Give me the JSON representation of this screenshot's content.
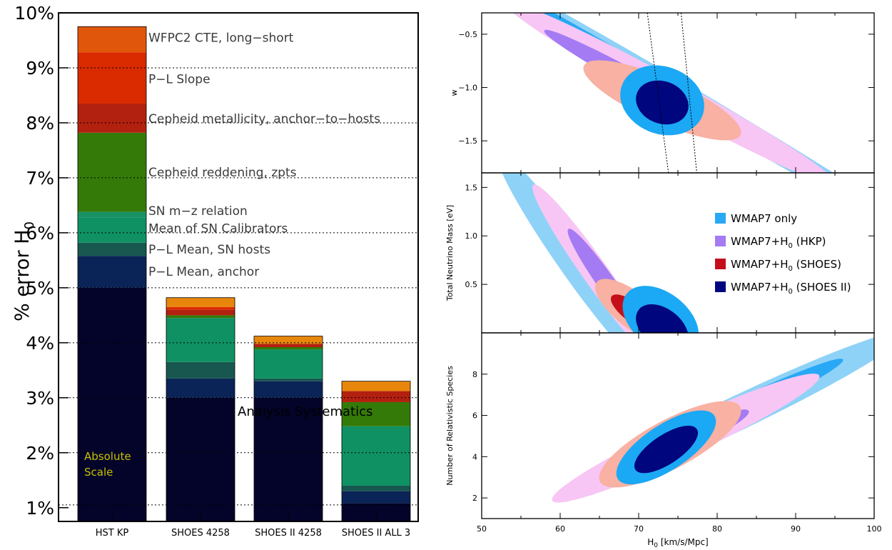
{
  "colors": {
    "absolute_scale": "#04042a",
    "pl_mean_anchor": "#0b2457",
    "pl_mean_hosts": "#17574f",
    "mean_sn_calibrators": "#0f9164",
    "sn_mz": "#1a9165",
    "reddening": "#347a08",
    "metallicity": "#b22010",
    "pl_slope": "#d92a00",
    "cte": "#e0560a",
    "analysis": "#e8860c",
    "wmap7": "#29a8f5",
    "wmap7_light": "#8fd2f7",
    "hkp": "#a57bf3",
    "hkp_light": "#f7c6f4",
    "shoes": "#c40f1a",
    "shoes_light": "#f8b1a2",
    "shoes2": "#00067e",
    "shoes2_light": "#1ba8f5"
  },
  "chart_data": [
    {
      "type": "bar",
      "stacked": true,
      "ylabel": "% error H",
      "ylabel_sub": "0",
      "ylim": [
        0.75,
        10
      ],
      "yticks": [
        {
          "v": 1,
          "label": "1%"
        },
        {
          "v": 2,
          "label": "2%"
        },
        {
          "v": 3,
          "label": "3%"
        },
        {
          "v": 4,
          "label": "4%"
        },
        {
          "v": 5,
          "label": "5%"
        },
        {
          "v": 6,
          "label": "6%"
        },
        {
          "v": 7,
          "label": "7%"
        },
        {
          "v": 8,
          "label": "8%"
        },
        {
          "v": 9,
          "label": "9%"
        },
        {
          "v": 10,
          "label": "10%"
        }
      ],
      "gridlines": [
        1.05,
        2,
        3,
        4,
        5,
        6,
        7,
        8,
        9
      ],
      "categories": [
        "HST KP",
        "SHOES 4258",
        "SHOES II 4258",
        "SHOES II ALL 3"
      ],
      "bars": [
        {
          "segments": [
            {
              "top": 5.0,
              "color": "absolute_scale"
            },
            {
              "top": 5.58,
              "color": "pl_mean_anchor"
            },
            {
              "top": 5.82,
              "color": "pl_mean_hosts"
            },
            {
              "top": 6.28,
              "color": "mean_sn_calibrators"
            },
            {
              "top": 6.38,
              "color": "sn_mz"
            },
            {
              "top": 7.82,
              "color": "reddening"
            },
            {
              "top": 8.35,
              "color": "metallicity"
            },
            {
              "top": 9.28,
              "color": "pl_slope"
            },
            {
              "top": 9.75,
              "color": "cte"
            }
          ]
        },
        {
          "segments": [
            {
              "top": 3.0,
              "color": "absolute_scale"
            },
            {
              "top": 3.35,
              "color": "pl_mean_anchor"
            },
            {
              "top": 3.65,
              "color": "pl_mean_hosts"
            },
            {
              "top": 4.45,
              "color": "mean_sn_calibrators"
            },
            {
              "top": 4.5,
              "color": "reddening"
            },
            {
              "top": 4.6,
              "color": "metallicity"
            },
            {
              "top": 4.65,
              "color": "pl_slope"
            },
            {
              "top": 4.82,
              "color": "analysis"
            }
          ]
        },
        {
          "segments": [
            {
              "top": 3.0,
              "color": "absolute_scale"
            },
            {
              "top": 3.3,
              "color": "pl_mean_anchor"
            },
            {
              "top": 3.35,
              "color": "pl_mean_hosts"
            },
            {
              "top": 3.88,
              "color": "mean_sn_calibrators"
            },
            {
              "top": 3.92,
              "color": "reddening"
            },
            {
              "top": 3.98,
              "color": "metallicity"
            },
            {
              "top": 4.12,
              "color": "analysis"
            }
          ]
        },
        {
          "segments": [
            {
              "top": 1.08,
              "color": "absolute_scale"
            },
            {
              "top": 1.3,
              "color": "pl_mean_anchor"
            },
            {
              "top": 1.4,
              "color": "pl_mean_hosts"
            },
            {
              "top": 2.48,
              "color": "mean_sn_calibrators"
            },
            {
              "top": 2.92,
              "color": "reddening"
            },
            {
              "top": 3.12,
              "color": "metallicity"
            },
            {
              "top": 3.3,
              "color": "analysis"
            }
          ]
        }
      ],
      "segment_labels": [
        {
          "text": "WFPC2 CTE, long−short",
          "v": 9.55
        },
        {
          "text": "P−L Slope",
          "v": 8.8
        },
        {
          "text": "Cepheid metallicity, anchor−to−hosts",
          "v": 8.08
        },
        {
          "text": "Cepheid reddening, zpts",
          "v": 7.1
        },
        {
          "text": "SN m−z relation",
          "v": 6.4
        },
        {
          "text": "Mean of SN Calibrators",
          "v": 6.08
        },
        {
          "text": "P−L Mean, SN hosts",
          "v": 5.7
        },
        {
          "text": "P−L Mean, anchor",
          "v": 5.3
        }
      ],
      "annotations": {
        "analysis_systematics": "Analysis Systematics",
        "absolute_scale_line1": "Absolute",
        "absolute_scale_line2": "Scale"
      }
    },
    {
      "type": "contour",
      "panels": [
        {
          "id": "w",
          "ylabel": "w",
          "ylim": [
            -1.8,
            -0.3
          ],
          "yticks": [
            -0.5,
            -1.0,
            -1.5
          ],
          "ytick_labels": [
            "−0.5",
            "−1.0",
            "−1.5"
          ],
          "hkp_band": [
            [
              71.1,
              -0.3
            ],
            [
              73.8,
              -1.8
            ],
            [
              75.4,
              -0.3
            ],
            [
              77.4,
              -1.8
            ]
          ],
          "contours": [
            {
              "set": "wmap7",
              "level": "outer",
              "color": "wmap7_light",
              "cx": 75,
              "cy": -1.05,
              "a": 33,
              "b": 0.13,
              "angle": -0.0433
            },
            {
              "set": "wmap7",
              "level": "inner",
              "color": "wmap7",
              "cx": 74,
              "cy": -1.0,
              "a": 26,
              "b": 0.07,
              "angle": -0.0433
            },
            {
              "set": "hkp",
              "level": "outer",
              "color": "hkp_light",
              "cx": 74,
              "cy": -1.05,
              "a": 21,
              "b": 0.15,
              "angle": -0.04
            },
            {
              "set": "hkp",
              "level": "inner",
              "color": "hkp",
              "cx": 70,
              "cy": -0.95,
              "a": 12,
              "b": 0.09,
              "angle": -0.04
            },
            {
              "set": "shoes",
              "level": "outer",
              "color": "shoes_light",
              "cx": 73,
              "cy": -1.12,
              "a": 10,
              "b": 0.22,
              "angle": -0.03
            },
            {
              "set": "shoes",
              "level": "inner",
              "color": "shoes",
              "cx": 73,
              "cy": -1.12,
              "a": 4,
              "b": 0.09,
              "angle": -0.03
            },
            {
              "set": "shoes2",
              "level": "outer",
              "color": "shoes2_light",
              "cx": 73,
              "cy": -1.12,
              "a": 5.3,
              "b": 0.32,
              "angle": -0.01
            },
            {
              "set": "shoes2",
              "level": "inner",
              "color": "shoes2",
              "cx": 73,
              "cy": -1.14,
              "a": 3.3,
              "b": 0.2,
              "angle": -0.01
            }
          ]
        },
        {
          "id": "mnu",
          "ylabel": "Total Neutrino Mass [eV]",
          "ylim": [
            0,
            1.65
          ],
          "yticks": [
            0.5,
            1.0,
            1.5
          ],
          "ytick_labels": [
            "0.5",
            "1.0",
            "1.5"
          ],
          "contours": [
            {
              "set": "wmap7",
              "level": "outer",
              "color": "wmap7_light",
              "cx": 62,
              "cy": 0.72,
              "a": 10,
              "b": 0.28,
              "angle": -0.11
            },
            {
              "set": "hkp",
              "level": "outer",
              "color": "hkp_light",
              "cx": 64.5,
              "cy": 0.62,
              "a": 8,
              "b": 0.22,
              "angle": -0.11
            },
            {
              "set": "hkp",
              "level": "inner",
              "color": "hkp",
              "cx": 66,
              "cy": 0.5,
              "a": 5,
              "b": 0.15,
              "angle": -0.11
            },
            {
              "set": "shoes",
              "level": "outer",
              "color": "shoes_light",
              "cx": 69.5,
              "cy": 0.22,
              "a": 5,
              "b": 0.22,
              "angle": -0.05
            },
            {
              "set": "shoes",
              "level": "inner",
              "color": "shoes",
              "cx": 69.5,
              "cy": 0.2,
              "a": 3,
              "b": 0.12,
              "angle": -0.05
            },
            {
              "set": "shoes2",
              "level": "outer",
              "color": "shoes2_light",
              "cx": 72.8,
              "cy": 0.13,
              "a": 4.8,
              "b": 0.32,
              "angle": -0.03
            },
            {
              "set": "shoes2",
              "level": "inner",
              "color": "shoes2",
              "cx": 73.0,
              "cy": 0.05,
              "a": 3.3,
              "b": 0.22,
              "angle": -0.03
            }
          ]
        },
        {
          "id": "neff",
          "ylabel": "Number of Relativistic Species",
          "ylim": [
            1,
            10
          ],
          "yticks": [
            2,
            4,
            6,
            8
          ],
          "ytick_labels": [
            "2",
            "4",
            "6",
            "8"
          ],
          "xlabel": "H",
          "xlabel_sub": "0",
          "xlabel_rest": " [km/s/Mpc]",
          "xlim": [
            50,
            100
          ],
          "xticks": [
            50,
            60,
            70,
            80,
            90,
            100
          ],
          "contours": [
            {
              "set": "wmap7",
              "level": "outer",
              "color": "wmap7_light",
              "cx": 82,
              "cy": 6.0,
              "a": 22,
              "b": 0.9,
              "angle": 0.18
            },
            {
              "set": "wmap7",
              "level": "inner",
              "color": "wmap7",
              "cx": 80,
              "cy": 5.8,
              "a": 16,
              "b": 0.55,
              "angle": 0.18
            },
            {
              "set": "hkp",
              "level": "outer",
              "color": "hkp_light",
              "cx": 76,
              "cy": 4.9,
              "a": 17,
              "b": 0.9,
              "angle": 0.175
            },
            {
              "set": "hkp",
              "level": "inner",
              "color": "hkp",
              "cx": 75,
              "cy": 4.6,
              "a": 9,
              "b": 0.55,
              "angle": 0.175
            },
            {
              "set": "shoes",
              "level": "outer",
              "color": "shoes_light",
              "cx": 74,
              "cy": 4.6,
              "a": 9,
              "b": 1.3,
              "angle": 0.18
            },
            {
              "set": "shoes2",
              "level": "outer",
              "color": "shoes2_light",
              "cx": 73.5,
              "cy": 4.45,
              "a": 6.3,
              "b": 1.25,
              "angle": 0.2
            },
            {
              "set": "shoes2",
              "level": "inner",
              "color": "shoes2",
              "cx": 73.5,
              "cy": 4.35,
              "a": 4.0,
              "b": 0.8,
              "angle": 0.2
            }
          ]
        }
      ],
      "legend": {
        "position": "middle-panel right",
        "items": [
          {
            "color": "wmap7",
            "label": "WMAP7 only",
            "sub": "",
            "rest": ""
          },
          {
            "color": "hkp",
            "label": "WMAP7+H",
            "sub": "0",
            "rest": " (HKP)"
          },
          {
            "color": "shoes",
            "label": "WMAP7+H",
            "sub": "0",
            "rest": " (SHOES)"
          },
          {
            "color": "shoes2",
            "label": "WMAP7+H",
            "sub": "0",
            "rest": " (SHOES II)"
          }
        ]
      }
    }
  ]
}
